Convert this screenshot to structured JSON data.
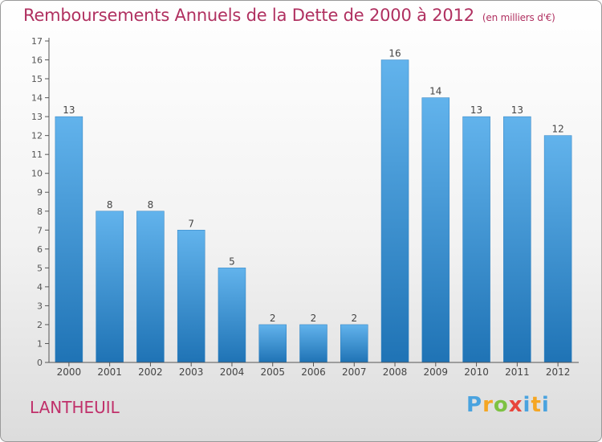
{
  "title": "Remboursements Annuels de la Dette de 2000 à 2012",
  "subtitle": "(en milliers d'€)",
  "commune": "LANTHEUIL",
  "brand": {
    "logo_text": "Proxiti"
  },
  "colors": {
    "title": "#b03060",
    "bar_light": "#62b3ec",
    "bar_dark": "#1f73b5",
    "axis": "#555555",
    "grid": "#e6e6e6"
  },
  "chart_data": {
    "type": "bar",
    "categories": [
      "2000",
      "2001",
      "2002",
      "2003",
      "2004",
      "2005",
      "2006",
      "2007",
      "2008",
      "2009",
      "2010",
      "2011",
      "2012"
    ],
    "values": [
      13,
      8,
      8,
      7,
      5,
      2,
      2,
      2,
      16,
      14,
      13,
      13,
      12
    ],
    "ylim": [
      0,
      17
    ],
    "yticks": [
      0,
      1,
      2,
      3,
      4,
      5,
      6,
      7,
      8,
      9,
      10,
      11,
      12,
      13,
      14,
      15,
      16,
      17
    ],
    "xlabel": "",
    "ylabel": "",
    "data_labels": true,
    "grid": false
  }
}
